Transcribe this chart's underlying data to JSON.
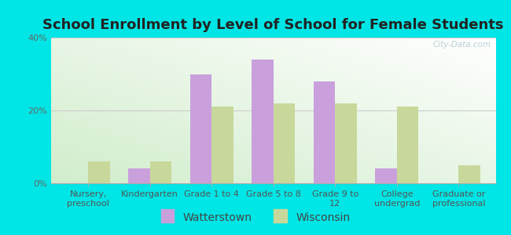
{
  "title": "School Enrollment by Level of School for Female Students",
  "categories": [
    "Nursery,\npreschool",
    "Kindergarten",
    "Grade 1 to 4",
    "Grade 5 to 8",
    "Grade 9 to\n12",
    "College\nundergrad",
    "Graduate or\nprofessional"
  ],
  "watterstown": [
    0,
    4,
    30,
    34,
    28,
    4,
    0
  ],
  "wisconsin": [
    6,
    6,
    21,
    22,
    22,
    21,
    5
  ],
  "watterstown_color": "#c9a0dc",
  "wisconsin_color": "#c8d89a",
  "background_color": "#00e5e5",
  "ylim": [
    0,
    40
  ],
  "yticks": [
    0,
    20,
    40
  ],
  "ytick_labels": [
    "0%",
    "20%",
    "40%"
  ],
  "bar_width": 0.35,
  "legend_labels": [
    "Watterstown",
    "Wisconsin"
  ],
  "watermark": "City-Data.com",
  "title_fontsize": 13,
  "tick_fontsize": 8,
  "legend_fontsize": 10
}
